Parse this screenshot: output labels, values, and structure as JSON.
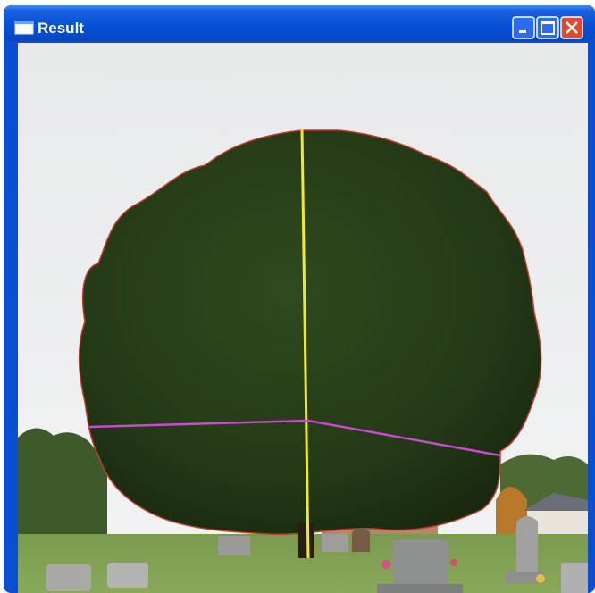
{
  "window": {
    "title": "Result"
  }
}
